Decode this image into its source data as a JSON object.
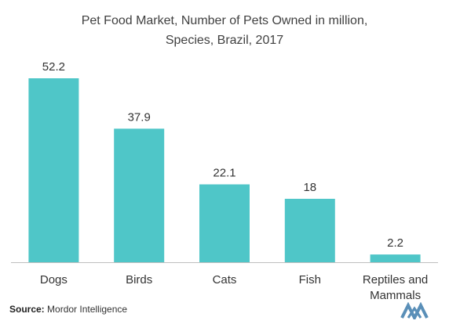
{
  "chart_data": {
    "type": "bar",
    "title_line1": "Pet Food Market, Number of Pets Owned in million,",
    "title_line2": "Species, Brazil,  2017",
    "categories": [
      "Dogs",
      "Birds",
      "Cats",
      "Fish",
      "Reptiles and Mammals"
    ],
    "values": [
      52.2,
      37.9,
      22.1,
      18,
      2.2
    ],
    "value_labels": [
      "52.2",
      "37.9",
      "22.1",
      "18",
      "2.2"
    ],
    "xlabel": "",
    "ylabel": "",
    "ylim": [
      0,
      52.2
    ],
    "grid": false,
    "legend": "none",
    "bar_color": "#4fc6c8",
    "axis_color": "#bfbfbf"
  },
  "footer": {
    "source_label": "Source:",
    "source_name": " Mordor Intelligence",
    "logo_icon": "mordor-intelligence-logo-icon",
    "logo_color": "#5a8fb8"
  }
}
